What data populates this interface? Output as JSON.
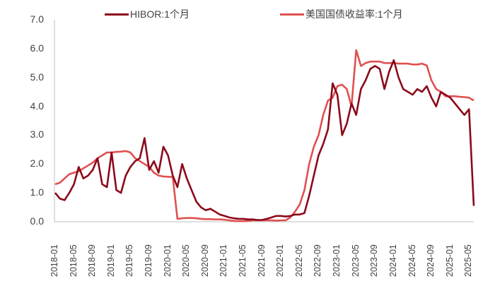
{
  "chart_data": {
    "type": "line",
    "title": "",
    "xlabel": "",
    "ylabel": "",
    "ylim": [
      0,
      7
    ],
    "yticks": [
      "0.0",
      "1.0",
      "2.0",
      "3.0",
      "4.0",
      "5.0",
      "6.0",
      "7.0"
    ],
    "xticks": [
      "2018-01",
      "2018-05",
      "2018-09",
      "2019-01",
      "2019-05",
      "2019-09",
      "2020-01",
      "2020-05",
      "2020-09",
      "2021-01",
      "2021-05",
      "2021-09",
      "2022-01",
      "2022-05",
      "2022-09",
      "2023-01",
      "2023-05",
      "2023-09",
      "2024-01",
      "2024-05",
      "2024-09",
      "2025-01",
      "2025-05"
    ],
    "grid": false,
    "legend_position": "top",
    "x": [
      "2018-01",
      "2018-02",
      "2018-03",
      "2018-04",
      "2018-05",
      "2018-06",
      "2018-07",
      "2018-08",
      "2018-09",
      "2018-10",
      "2018-11",
      "2018-12",
      "2019-01",
      "2019-02",
      "2019-03",
      "2019-04",
      "2019-05",
      "2019-06",
      "2019-07",
      "2019-08",
      "2019-09",
      "2019-10",
      "2019-11",
      "2019-12",
      "2020-01",
      "2020-02",
      "2020-03",
      "2020-04",
      "2020-05",
      "2020-06",
      "2020-07",
      "2020-08",
      "2020-09",
      "2020-10",
      "2020-11",
      "2020-12",
      "2021-01",
      "2021-02",
      "2021-03",
      "2021-04",
      "2021-05",
      "2021-06",
      "2021-07",
      "2021-08",
      "2021-09",
      "2021-10",
      "2021-11",
      "2021-12",
      "2022-01",
      "2022-02",
      "2022-03",
      "2022-04",
      "2022-05",
      "2022-06",
      "2022-07",
      "2022-08",
      "2022-09",
      "2022-10",
      "2022-11",
      "2022-12",
      "2023-01",
      "2023-02",
      "2023-03",
      "2023-04",
      "2023-05",
      "2023-06",
      "2023-07",
      "2023-08",
      "2023-09",
      "2023-10",
      "2023-11",
      "2023-12",
      "2024-01",
      "2024-02",
      "2024-03",
      "2024-04",
      "2024-05",
      "2024-06",
      "2024-07",
      "2024-08",
      "2024-09",
      "2024-10",
      "2024-11",
      "2024-12",
      "2025-01",
      "2025-02",
      "2025-03",
      "2025-04",
      "2025-05",
      "2025-06"
    ],
    "series": [
      {
        "name": "HIBOR:1个月",
        "color": "#8b0a1a",
        "values": [
          1.0,
          0.8,
          0.75,
          1.0,
          1.3,
          1.9,
          1.5,
          1.6,
          1.8,
          2.2,
          1.3,
          1.2,
          2.4,
          1.1,
          1.0,
          1.6,
          1.9,
          2.1,
          2.2,
          2.9,
          1.8,
          2.1,
          1.7,
          2.6,
          2.3,
          1.6,
          1.2,
          2.0,
          1.5,
          1.1,
          0.7,
          0.5,
          0.4,
          0.45,
          0.35,
          0.25,
          0.2,
          0.15,
          0.12,
          0.1,
          0.1,
          0.08,
          0.08,
          0.06,
          0.06,
          0.1,
          0.15,
          0.2,
          0.2,
          0.18,
          0.2,
          0.25,
          0.25,
          0.3,
          0.9,
          1.6,
          2.3,
          2.7,
          3.2,
          4.8,
          4.4,
          3.0,
          3.4,
          4.1,
          3.7,
          4.6,
          4.9,
          5.3,
          5.4,
          5.3,
          4.6,
          5.2,
          5.6,
          5.0,
          4.6,
          4.5,
          4.4,
          4.6,
          4.5,
          4.7,
          4.3,
          4.0,
          4.5,
          4.4,
          4.3,
          4.1,
          3.9,
          3.7,
          3.9,
          0.55
        ]
      },
      {
        "name": "美国国债收益率:1个月",
        "color": "#e05050",
        "values": [
          1.3,
          1.35,
          1.5,
          1.65,
          1.7,
          1.75,
          1.85,
          1.95,
          2.05,
          2.2,
          2.3,
          2.4,
          2.4,
          2.42,
          2.43,
          2.45,
          2.4,
          2.2,
          2.1,
          2.0,
          1.9,
          1.7,
          1.6,
          1.57,
          1.56,
          1.55,
          0.1,
          0.12,
          0.13,
          0.13,
          0.12,
          0.1,
          0.09,
          0.09,
          0.08,
          0.08,
          0.07,
          0.05,
          0.03,
          0.02,
          0.02,
          0.03,
          0.05,
          0.05,
          0.05,
          0.05,
          0.05,
          0.04,
          0.05,
          0.05,
          0.15,
          0.35,
          0.6,
          1.1,
          2.0,
          2.6,
          3.0,
          3.7,
          4.2,
          4.3,
          4.7,
          4.75,
          4.6,
          4.0,
          5.95,
          5.4,
          5.5,
          5.55,
          5.55,
          5.55,
          5.5,
          5.5,
          5.5,
          5.48,
          5.48,
          5.48,
          5.45,
          5.45,
          5.48,
          5.42,
          4.9,
          4.6,
          4.5,
          4.35,
          4.35,
          4.35,
          4.33,
          4.32,
          4.3,
          4.2
        ]
      }
    ]
  },
  "legend": [
    {
      "label": "HIBOR:1个月",
      "color": "#8b0a1a"
    },
    {
      "label": "美国国债收益率:1个月",
      "color": "#e05050"
    }
  ]
}
